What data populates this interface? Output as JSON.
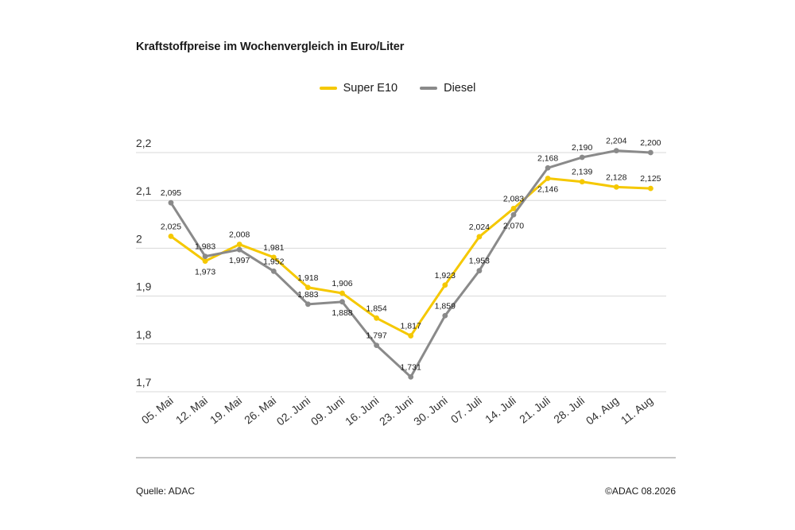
{
  "chart_data": {
    "type": "line",
    "title": "Kraftstoffpreise im Wochenvergleich in Euro/Liter",
    "categories": [
      "05. Mai",
      "12. Mai",
      "19. Mai",
      "26. Mai",
      "02. Juni",
      "09. Juni",
      "16. Juni",
      "23. Juni",
      "30. Juni",
      "07. Juli",
      "14. Juli",
      "21. Juli",
      "28. Juli",
      "04. Aug",
      "11. Aug"
    ],
    "series": [
      {
        "name": "Super E10",
        "color": "#f5c800",
        "values": [
          2.025,
          1.973,
          2.008,
          1.981,
          1.918,
          1.906,
          1.854,
          1.817,
          1.923,
          2.024,
          2.083,
          2.146,
          2.139,
          2.128,
          2.125
        ],
        "labels": [
          "2,025",
          "1,973",
          "2,008",
          "1,981",
          "1,918",
          "1,906",
          "1,854",
          "1,817",
          "1,923",
          "2,024",
          "2,083",
          "2,146",
          "2,139",
          "2,128",
          "2,125"
        ],
        "label_pos": [
          "above",
          "below",
          "above",
          "above",
          "above",
          "above",
          "above",
          "above",
          "above",
          "above",
          "above",
          "below",
          "above",
          "above",
          "above"
        ]
      },
      {
        "name": "Diesel",
        "color": "#8a8a8a",
        "values": [
          2.095,
          1.983,
          1.997,
          1.952,
          1.883,
          1.888,
          1.797,
          1.731,
          1.859,
          1.953,
          2.07,
          2.168,
          2.19,
          2.204,
          2.2
        ],
        "labels": [
          "2,095",
          "1,983",
          "1,997",
          "1,952",
          "1,883",
          "1,888",
          "1,797",
          "1,731",
          "1,859",
          "1,953",
          "2,070",
          "2,168",
          "2,190",
          "2,204",
          "2,200"
        ],
        "label_pos": [
          "above",
          "above",
          "below",
          "above",
          "above",
          "below",
          "above",
          "above",
          "above",
          "above",
          "below",
          "above",
          "above",
          "above",
          "above"
        ]
      }
    ],
    "yticks": [
      1.7,
      1.8,
      1.9,
      2.0,
      2.1,
      2.2
    ],
    "ytick_labels": [
      "1,7",
      "1,8",
      "1,9",
      "2",
      "2,1",
      "2,2"
    ],
    "ylim": [
      1.7,
      2.2
    ],
    "grid": true,
    "legend_position": "top-center"
  },
  "footer": {
    "source": "Quelle: ADAC",
    "copyright": "©ADAC 08.2026"
  }
}
